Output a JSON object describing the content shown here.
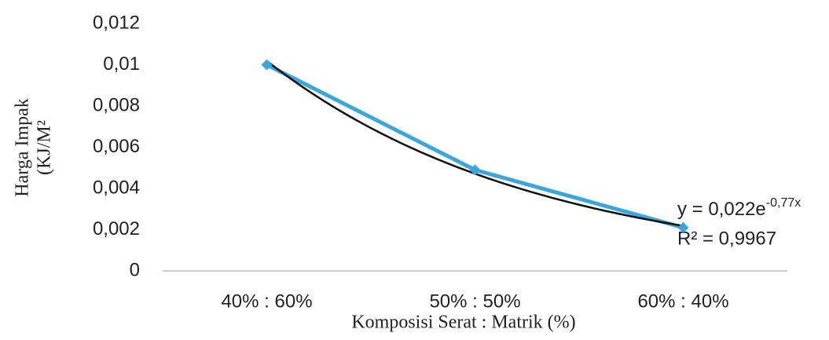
{
  "chart_data": {
    "type": "line",
    "x_label": "Komposisi Serat : Matrik (%)",
    "y_label": [
      "Harga Impak",
      "(KJ/M²"
    ],
    "categories": [
      "40% : 60%",
      "50% : 50%",
      "60% : 40%"
    ],
    "values": [
      0.01,
      0.0049,
      0.0021
    ],
    "color": "#3aa6dd",
    "ylim": [
      0,
      0.012
    ],
    "yticks": [
      0,
      {
        "value": 0.002,
        "label": "0,002"
      },
      {
        "value": 0.004,
        "label": "0,004"
      },
      {
        "value": 0.006,
        "label": "0,006"
      },
      {
        "value": 0.008,
        "label": "0,008"
      },
      {
        "value": 0.01,
        "label": "0,01"
      },
      {
        "value": 0.012,
        "label": "0,012"
      }
    ],
    "trendline": {
      "a": 0.022,
      "b": -0.77,
      "color": "#111111",
      "equation": [
        "y = 0,022e",
        "-0,77x"
      ],
      "r2": 0.9967,
      "r2_label": "R² = 0,9967"
    }
  }
}
